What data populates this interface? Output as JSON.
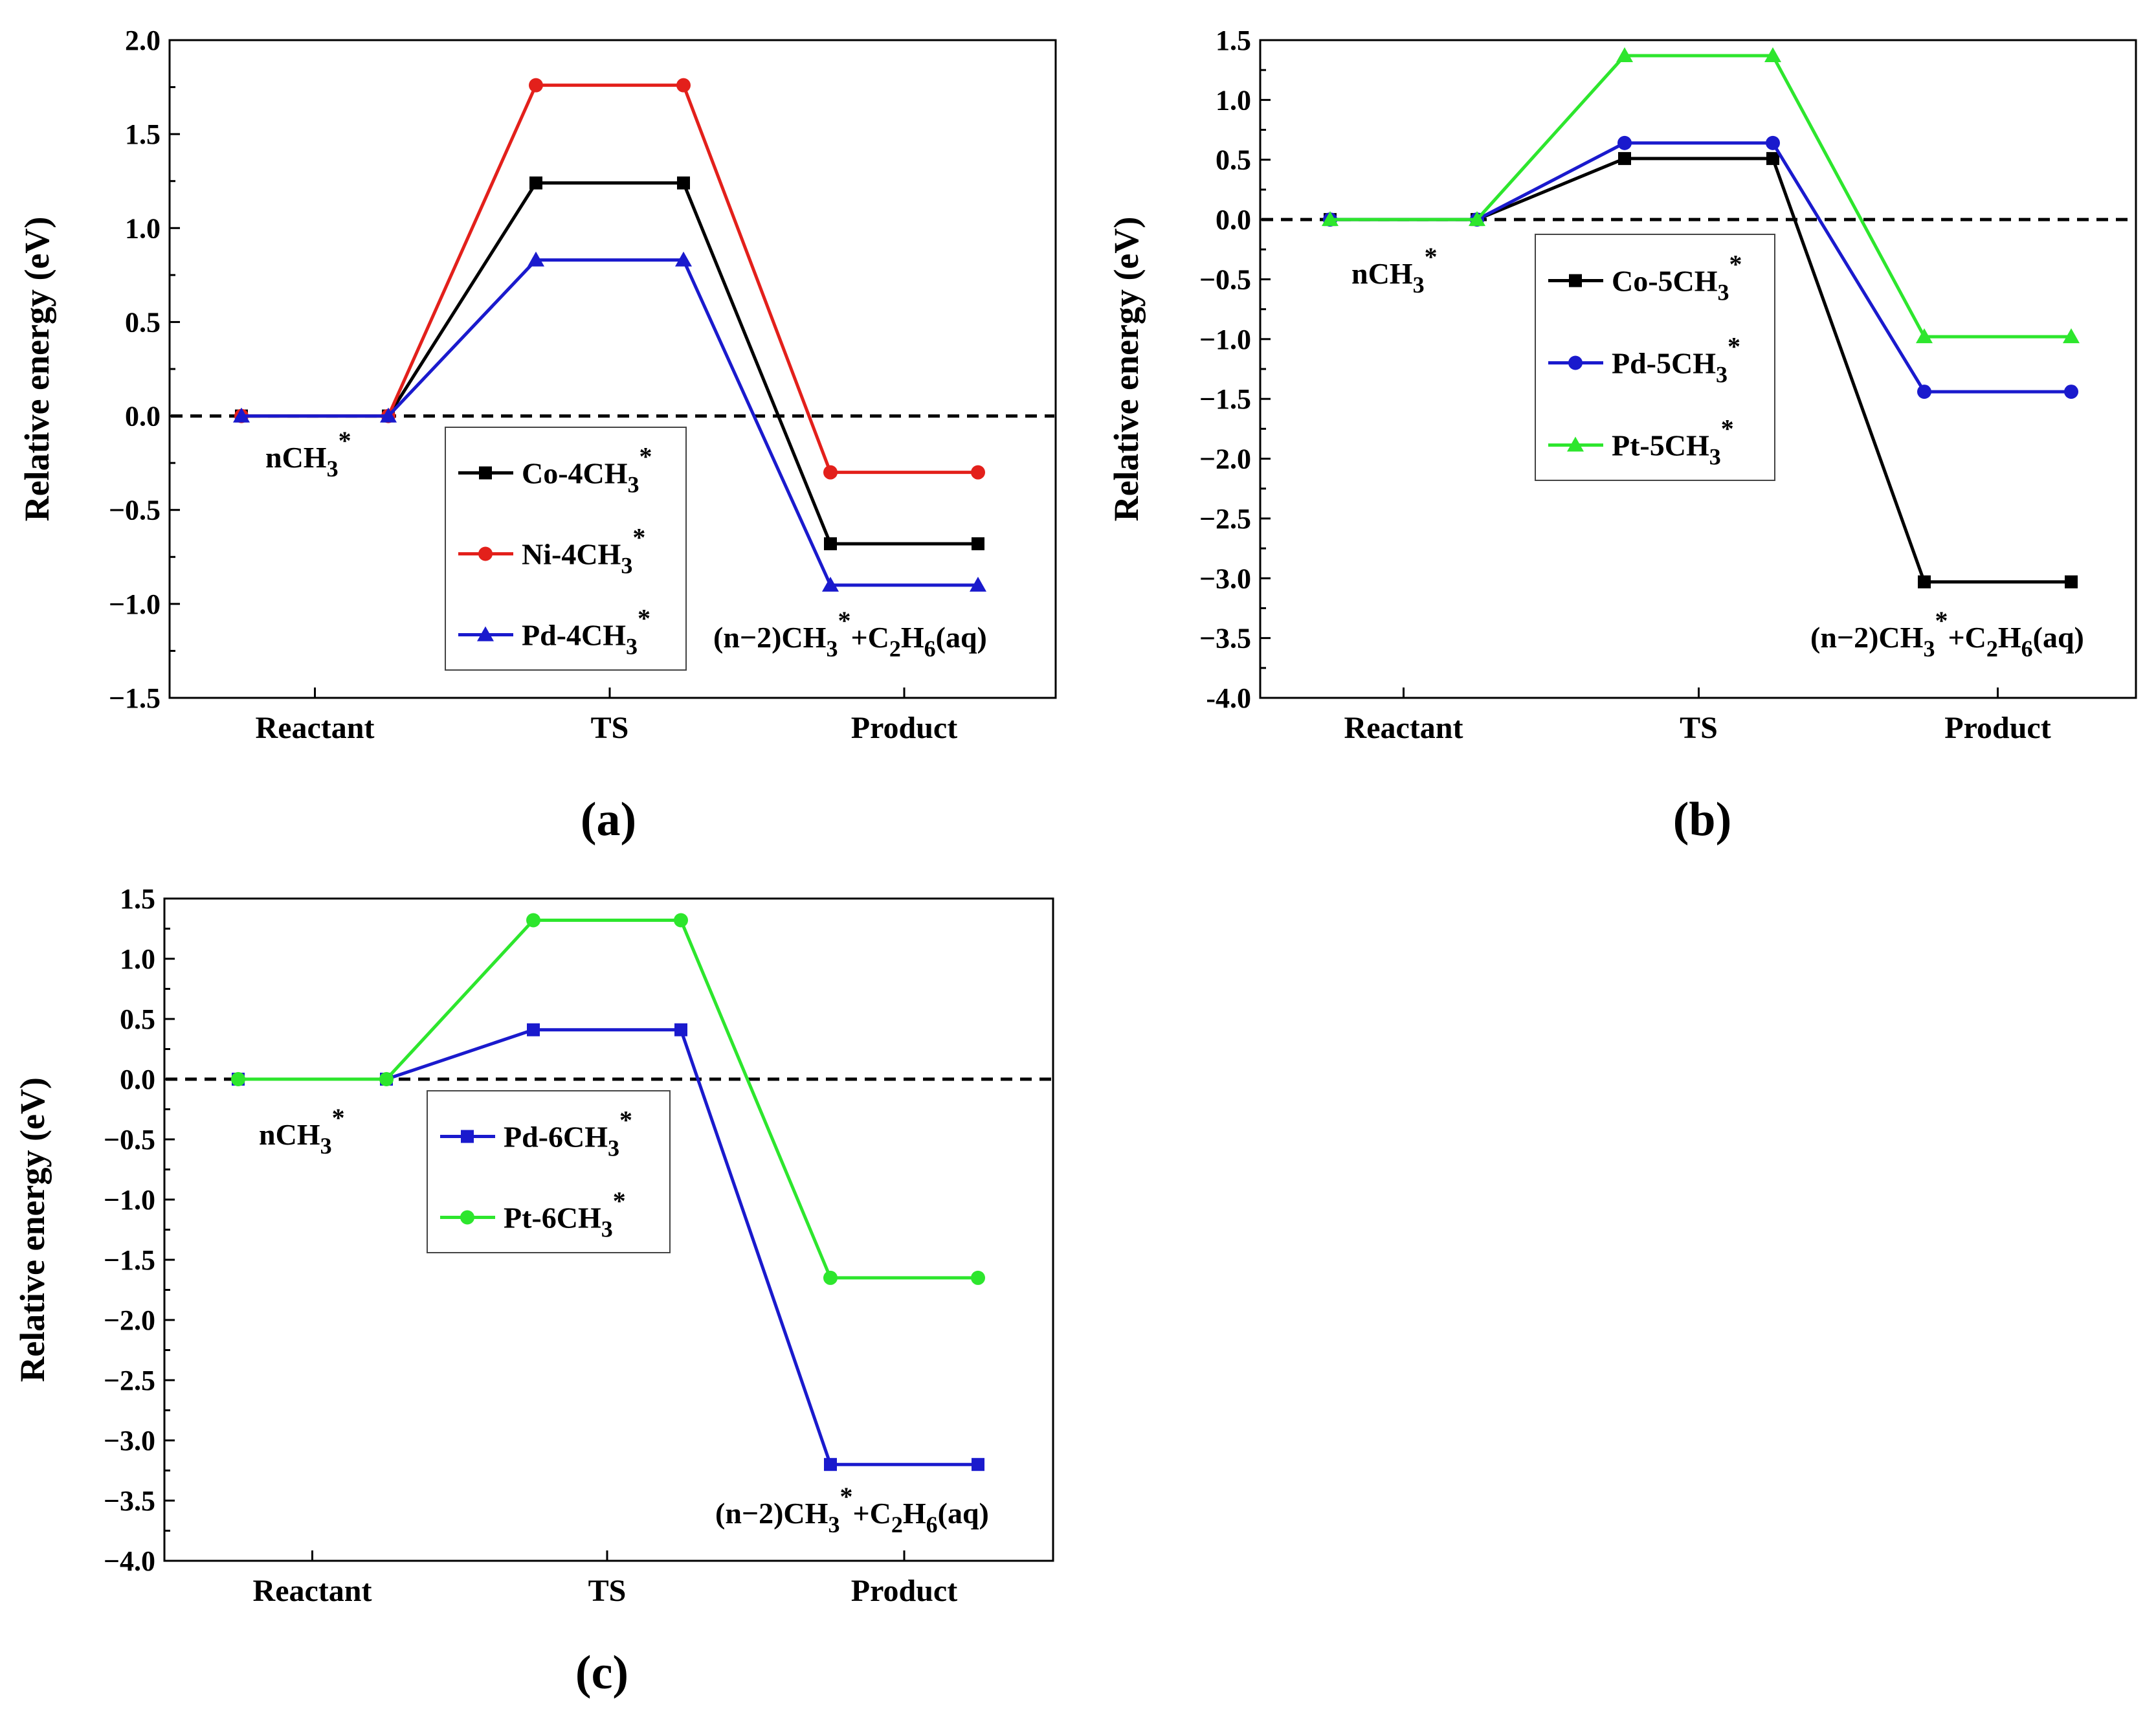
{
  "chart_data": [
    {
      "type": "line",
      "panel_label": "(a)",
      "xlabel": "",
      "ylabel": "Relative energy (eV)",
      "ylim": [
        -1.5,
        2.0
      ],
      "yticks": [
        "−1.5",
        "−1.0",
        "−0.5",
        "0.0",
        "0.5",
        "1.0",
        "1.5",
        "2.0"
      ],
      "categories": [
        "Reactant",
        "TS",
        "Product"
      ],
      "reference_line": 0.0,
      "annotations": {
        "reactant": {
          "base": "nCH",
          "sub": "3",
          "sup": "*"
        },
        "product": {
          "p1": "(n−2)CH",
          "s1": "3",
          "sup1": "*",
          "p2": "+C",
          "s2": "2",
          "p3": "H",
          "s3": "6",
          "p4": "(aq)"
        }
      },
      "legend_position": "bottom-center",
      "series": [
        {
          "name": "Co-4CH",
          "sub": "3",
          "sup": "*",
          "color": "#000000",
          "marker": "square",
          "values": [
            0.0,
            1.24,
            -0.68
          ]
        },
        {
          "name": "Ni-4CH",
          "sub": "3",
          "sup": "*",
          "color": "#e3201b",
          "marker": "circle",
          "values": [
            0.0,
            1.76,
            -0.3
          ]
        },
        {
          "name": "Pd-4CH",
          "sub": "3",
          "sup": "*",
          "color": "#1a1acd",
          "marker": "triangle",
          "values": [
            0.0,
            0.83,
            -0.9
          ]
        }
      ]
    },
    {
      "type": "line",
      "panel_label": "(b)",
      "xlabel": "",
      "ylabel": "Relative energy (eV)",
      "ylim": [
        -4.0,
        1.5
      ],
      "yticks": [
        "-4.0",
        "−3.5",
        "−3.0",
        "−2.5",
        "−2.0",
        "−1.5",
        "−1.0",
        "−0.5",
        "0.0",
        "0.5",
        "1.0",
        "1.5"
      ],
      "categories": [
        "Reactant",
        "TS",
        "Product"
      ],
      "reference_line": 0.0,
      "annotations": {
        "reactant": {
          "base": "nCH",
          "sub": "3",
          "sup": "*"
        },
        "product": {
          "p1": "(n−2)CH",
          "s1": "3",
          "sup1": "*",
          "p2": "+C",
          "s2": "2",
          "p3": "H",
          "s3": "6",
          "p4": "(aq)"
        }
      },
      "legend_position": "center",
      "series": [
        {
          "name": "Co-5CH",
          "sub": "3",
          "sup": "*",
          "color": "#000000",
          "marker": "square",
          "values": [
            0.0,
            0.51,
            -3.03
          ]
        },
        {
          "name": "Pd-5CH",
          "sub": "3",
          "sup": "*",
          "color": "#1a1acd",
          "marker": "circle",
          "values": [
            0.0,
            0.64,
            -1.44
          ]
        },
        {
          "name": "Pt-5CH",
          "sub": "3",
          "sup": "*",
          "color": "#2de62d",
          "marker": "triangle",
          "values": [
            0.0,
            1.37,
            -0.98
          ]
        }
      ]
    },
    {
      "type": "line",
      "panel_label": "(c)",
      "xlabel": "",
      "ylabel": "Relative energy (eV)",
      "ylim": [
        -4.0,
        1.5
      ],
      "yticks": [
        "−4.0",
        "−3.5",
        "−3.0",
        "−2.5",
        "−2.0",
        "−1.5",
        "−1.0",
        "−0.5",
        "0.0",
        "0.5",
        "1.0",
        "1.5"
      ],
      "categories": [
        "Reactant",
        "TS",
        "Product"
      ],
      "reference_line": 0.0,
      "annotations": {
        "reactant": {
          "base": "nCH",
          "sub": "3",
          "sup": "*"
        },
        "product": {
          "p1": "(n−2)CH",
          "s1": "3",
          "sup1": "*",
          "p2": "+C",
          "s2": "2",
          "p3": "H",
          "s3": "6",
          "p4": "(aq)"
        }
      },
      "legend_position": "center-left",
      "series": [
        {
          "name": "Pd-6CH",
          "sub": "3",
          "sup": "*",
          "color": "#1a1acd",
          "marker": "square",
          "values": [
            0.0,
            0.41,
            -3.2
          ]
        },
        {
          "name": "Pt-6CH",
          "sub": "3",
          "sup": "*",
          "color": "#2de62d",
          "marker": "circle",
          "values": [
            0.0,
            1.32,
            -1.65
          ]
        }
      ]
    }
  ]
}
